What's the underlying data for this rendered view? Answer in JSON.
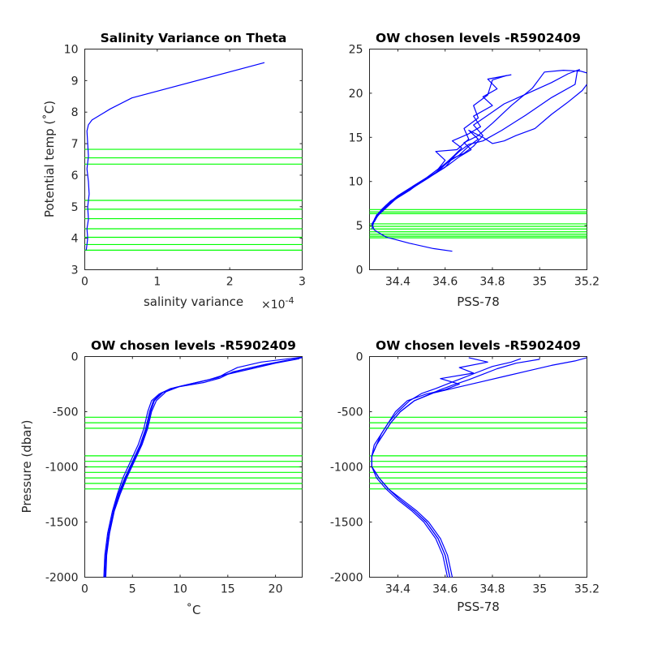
{
  "colors": {
    "profile": "#0000ff",
    "levels": "#00ff00",
    "axes": "#262626"
  },
  "chart_data": [
    {
      "type": "line",
      "title": "Salinity Variance on Theta",
      "xlabel": "salinity variance",
      "x_exponent": "×10",
      "x_exponent_power": "-4",
      "ylabel": "Potential temp (˚C)",
      "xlim": [
        0,
        3
      ],
      "ylim": [
        3,
        10
      ],
      "xticks": [
        0,
        1,
        2,
        3
      ],
      "xticklabels": [
        "0",
        "1",
        "2",
        "3"
      ],
      "yticks": [
        3,
        4,
        5,
        6,
        7,
        8,
        9,
        10
      ],
      "yticklabels": [
        "3",
        "4",
        "5",
        "6",
        "7",
        "8",
        "9",
        "10"
      ],
      "grid": false,
      "hlines": [
        3.62,
        3.8,
        4.03,
        4.3,
        4.62,
        4.92,
        5.2,
        6.35,
        6.55,
        6.82
      ],
      "series": [
        {
          "x": [
            0.02,
            0.03,
            0.04,
            0.03,
            0.05,
            0.04,
            0.06,
            0.05,
            0.03,
            0.05,
            0.04,
            0.03,
            0.05,
            0.1,
            0.35,
            0.65,
            2.48
          ],
          "y": [
            3.62,
            3.8,
            4.0,
            4.3,
            4.6,
            5.0,
            5.4,
            5.8,
            6.2,
            6.6,
            7.0,
            7.4,
            7.6,
            7.75,
            8.1,
            8.45,
            9.57
          ]
        }
      ]
    },
    {
      "type": "line",
      "title": "OW chosen levels -R5902409",
      "xlabel": "PSS-78",
      "ylabel": "",
      "xlim": [
        34.28,
        35.2
      ],
      "ylim": [
        0,
        25
      ],
      "xticks": [
        34.4,
        34.6,
        34.8,
        35,
        35.2
      ],
      "xticklabels": [
        "34.4",
        "34.6",
        "34.8",
        "35",
        "35.2"
      ],
      "yticks": [
        0,
        5,
        10,
        15,
        20,
        25
      ],
      "yticklabels": [
        "0",
        "5",
        "10",
        "15",
        "20",
        "25"
      ],
      "grid": false,
      "hlines": [
        3.62,
        3.8,
        4.03,
        4.3,
        4.62,
        4.92,
        5.2,
        6.35,
        6.55,
        6.82
      ],
      "series": [
        {
          "x": [
            34.63,
            34.55,
            34.45,
            34.35,
            34.3,
            34.29,
            34.31,
            34.35,
            34.39,
            34.44,
            34.5,
            34.56,
            34.6,
            34.66,
            34.7,
            34.74,
            34.7,
            34.76,
            34.8,
            34.85,
            34.9,
            34.98,
            35.05,
            35.12,
            35.18,
            35.2
          ],
          "y": [
            2.1,
            2.4,
            3.0,
            3.7,
            4.5,
            5.2,
            6.0,
            7.0,
            8.0,
            9.0,
            10.0,
            11.0,
            12.0,
            13.0,
            14.0,
            14.8,
            15.8,
            15.0,
            14.3,
            14.6,
            15.2,
            16.0,
            17.6,
            19.0,
            20.3,
            21.0
          ]
        },
        {
          "x": [
            34.29,
            34.3,
            34.33,
            34.37,
            34.42,
            34.48,
            34.54,
            34.6,
            34.63,
            34.68,
            34.72,
            34.76,
            34.72,
            34.78,
            34.85,
            34.95,
            35.05,
            35.12,
            35.17
          ],
          "y": [
            4.6,
            5.6,
            6.6,
            7.6,
            8.6,
            9.6,
            10.6,
            11.6,
            12.6,
            13.2,
            14.0,
            15.2,
            16.4,
            17.5,
            18.8,
            20.0,
            21.2,
            22.2,
            22.7
          ]
        },
        {
          "x": [
            34.29,
            34.31,
            34.35,
            34.4,
            34.46,
            34.52,
            34.57,
            34.6,
            34.56,
            34.65,
            34.7,
            34.68,
            34.74,
            34.72,
            34.78,
            34.8,
            34.86
          ],
          "y": [
            5.1,
            6.2,
            7.3,
            8.4,
            9.4,
            10.4,
            11.4,
            12.4,
            13.4,
            13.6,
            14.8,
            16.0,
            17.2,
            18.6,
            19.8,
            21.5,
            22.0
          ]
        },
        {
          "x": [
            34.3,
            34.32,
            34.36,
            34.41,
            34.47,
            34.53,
            34.58,
            34.62,
            34.66,
            34.7,
            34.76,
            34.84,
            34.94,
            35.05,
            35.15,
            35.16,
            35.2
          ],
          "y": [
            5.4,
            6.4,
            7.4,
            8.4,
            9.4,
            10.4,
            11.4,
            12.4,
            13.4,
            14.2,
            14.6,
            15.8,
            17.5,
            19.5,
            21.0,
            22.6,
            22.3
          ]
        },
        {
          "x": [
            34.29,
            34.31,
            34.34,
            34.39,
            34.45,
            34.5,
            34.55,
            34.6,
            34.64,
            34.67,
            34.63,
            34.7,
            34.75,
            34.72,
            34.8,
            34.76,
            34.82,
            34.78,
            34.88
          ],
          "y": [
            5.0,
            6.0,
            7.0,
            8.0,
            9.0,
            10.0,
            11.0,
            12.0,
            13.0,
            13.8,
            14.6,
            15.4,
            16.2,
            17.4,
            18.6,
            19.6,
            20.5,
            21.6,
            22.1
          ]
        },
        {
          "x": [
            34.3,
            34.33,
            34.37,
            34.43,
            34.49,
            34.55,
            34.61,
            34.66,
            34.71,
            34.68,
            34.74,
            34.8,
            34.88,
            34.97,
            35.02,
            35.1,
            35.17
          ],
          "y": [
            5.7,
            6.8,
            7.8,
            8.8,
            9.8,
            10.8,
            11.8,
            12.8,
            13.6,
            14.4,
            15.2,
            16.6,
            18.6,
            20.6,
            22.4,
            22.6,
            22.5
          ]
        }
      ]
    },
    {
      "type": "line",
      "title": "OW chosen levels -R5902409",
      "xlabel": "˚C",
      "ylabel": "Pressure (dbar)",
      "xlim": [
        0,
        22.8
      ],
      "ylim": [
        -2000,
        0
      ],
      "xticks": [
        0,
        5,
        10,
        15,
        20
      ],
      "xticklabels": [
        "0",
        "5",
        "10",
        "15",
        "20"
      ],
      "yticks": [
        -2000,
        -1500,
        -1000,
        -500,
        0
      ],
      "yticklabels": [
        "-2000",
        "-1500",
        "-1000",
        "-500",
        "0"
      ],
      "grid": false,
      "hlines": [
        -550,
        -600,
        -650,
        -900,
        -950,
        -1000,
        -1050,
        -1100,
        -1150,
        -1200
      ],
      "series": [
        {
          "x": [
            2.1,
            2.2,
            2.5,
            3.0,
            3.5,
            4.2,
            5.0,
            5.8,
            6.4,
            6.8,
            7.2,
            8.0,
            9.5,
            11.5,
            13.5,
            15.0,
            17.5,
            20.0,
            22.5
          ],
          "y": [
            -2000,
            -1800,
            -1600,
            -1400,
            -1250,
            -1100,
            -950,
            -800,
            -650,
            -500,
            -400,
            -330,
            -280,
            -240,
            -200,
            -160,
            -110,
            -60,
            -20
          ]
        },
        {
          "x": [
            2.0,
            2.1,
            2.4,
            2.9,
            3.4,
            4.0,
            4.8,
            5.6,
            6.2,
            6.6,
            7.0,
            7.8,
            9.0,
            11.0,
            13.0,
            14.5,
            16.5,
            19.0,
            21.5
          ],
          "y": [
            -2000,
            -1800,
            -1600,
            -1400,
            -1250,
            -1100,
            -950,
            -800,
            -650,
            -500,
            -400,
            -340,
            -290,
            -250,
            -210,
            -170,
            -120,
            -70,
            -30
          ]
        },
        {
          "x": [
            2.2,
            2.3,
            2.6,
            3.1,
            3.7,
            4.4,
            5.2,
            6.0,
            6.6,
            7.0,
            7.5,
            8.5,
            10.0,
            12.0,
            14.0,
            14.8,
            16.0,
            18.5,
            22.8
          ],
          "y": [
            -2000,
            -1800,
            -1600,
            -1400,
            -1250,
            -1100,
            -950,
            -800,
            -650,
            -500,
            -400,
            -320,
            -270,
            -230,
            -190,
            -150,
            -100,
            -50,
            -5
          ]
        },
        {
          "x": [
            2.1,
            2.25,
            2.55,
            3.05,
            3.6,
            4.3,
            5.1,
            5.9,
            6.5,
            6.9,
            7.3,
            8.2,
            9.8,
            12.5,
            14.2,
            15.5,
            18.0,
            21.0,
            22.8
          ],
          "y": [
            -2000,
            -1800,
            -1600,
            -1400,
            -1250,
            -1100,
            -950,
            -800,
            -650,
            -500,
            -400,
            -325,
            -275,
            -235,
            -195,
            -140,
            -90,
            -40,
            -10
          ]
        }
      ]
    },
    {
      "type": "line",
      "title": "OW chosen levels -R5902409",
      "xlabel": "PSS-78",
      "ylabel": "",
      "xlim": [
        34.28,
        35.2
      ],
      "ylim": [
        -2000,
        0
      ],
      "xticks": [
        34.4,
        34.6,
        34.8,
        35,
        35.2
      ],
      "xticklabels": [
        "34.4",
        "34.6",
        "34.8",
        "35",
        "35.2"
      ],
      "yticks": [
        -2000,
        -1500,
        -1000,
        -500,
        0
      ],
      "yticklabels": [
        "-2000",
        "-1500",
        "-1000",
        "-500",
        "0"
      ],
      "grid": false,
      "hlines": [
        -550,
        -600,
        -650,
        -900,
        -950,
        -1000,
        -1050,
        -1100,
        -1150,
        -1200
      ],
      "series": [
        {
          "x": [
            34.62,
            34.6,
            34.57,
            34.52,
            34.47,
            34.41,
            34.36,
            34.32,
            34.29,
            34.29,
            34.31,
            34.34,
            34.37,
            34.41,
            34.47,
            34.55,
            34.65,
            34.75,
            34.85,
            34.95,
            35.05,
            35.15,
            35.2
          ],
          "y": [
            -2000,
            -1800,
            -1650,
            -1500,
            -1400,
            -1300,
            -1200,
            -1100,
            -1000,
            -900,
            -800,
            -700,
            -600,
            -500,
            -400,
            -330,
            -280,
            -230,
            -180,
            -130,
            -80,
            -40,
            -10
          ]
        },
        {
          "x": [
            34.63,
            34.61,
            34.58,
            34.53,
            34.48,
            34.42,
            34.36,
            34.32,
            34.29,
            34.29,
            34.31,
            34.33,
            34.36,
            34.39,
            34.44,
            34.52,
            34.6,
            34.66,
            34.58,
            34.72,
            34.66,
            34.78,
            34.7
          ],
          "y": [
            -2000,
            -1800,
            -1650,
            -1500,
            -1400,
            -1300,
            -1200,
            -1100,
            -1000,
            -900,
            -800,
            -700,
            -600,
            -500,
            -400,
            -340,
            -300,
            -250,
            -200,
            -150,
            -100,
            -50,
            -10
          ]
        },
        {
          "x": [
            34.61,
            34.59,
            34.56,
            34.51,
            34.46,
            34.4,
            34.35,
            34.31,
            34.29,
            34.29,
            34.3,
            34.33,
            34.36,
            34.4,
            34.45,
            34.5,
            34.56,
            34.62,
            34.68,
            34.74,
            34.8,
            34.88,
            34.92
          ],
          "y": [
            -2000,
            -1800,
            -1650,
            -1500,
            -1400,
            -1300,
            -1200,
            -1100,
            -1000,
            -900,
            -800,
            -700,
            -600,
            -500,
            -400,
            -335,
            -290,
            -240,
            -190,
            -140,
            -90,
            -50,
            -20
          ]
        },
        {
          "x": [
            34.62,
            34.6,
            34.57,
            34.52,
            34.47,
            34.41,
            34.36,
            34.32,
            34.29,
            34.29,
            34.31,
            34.34,
            34.37,
            34.41,
            34.47,
            34.53,
            34.58,
            34.63,
            34.7,
            34.76,
            34.82,
            34.9,
            35.0
          ],
          "y": [
            -2000,
            -1800,
            -1650,
            -1500,
            -1400,
            -1300,
            -1200,
            -1100,
            -1000,
            -900,
            -800,
            -700,
            -600,
            -500,
            -400,
            -345,
            -300,
            -260,
            -210,
            -160,
            -110,
            -60,
            -25
          ]
        }
      ]
    }
  ]
}
